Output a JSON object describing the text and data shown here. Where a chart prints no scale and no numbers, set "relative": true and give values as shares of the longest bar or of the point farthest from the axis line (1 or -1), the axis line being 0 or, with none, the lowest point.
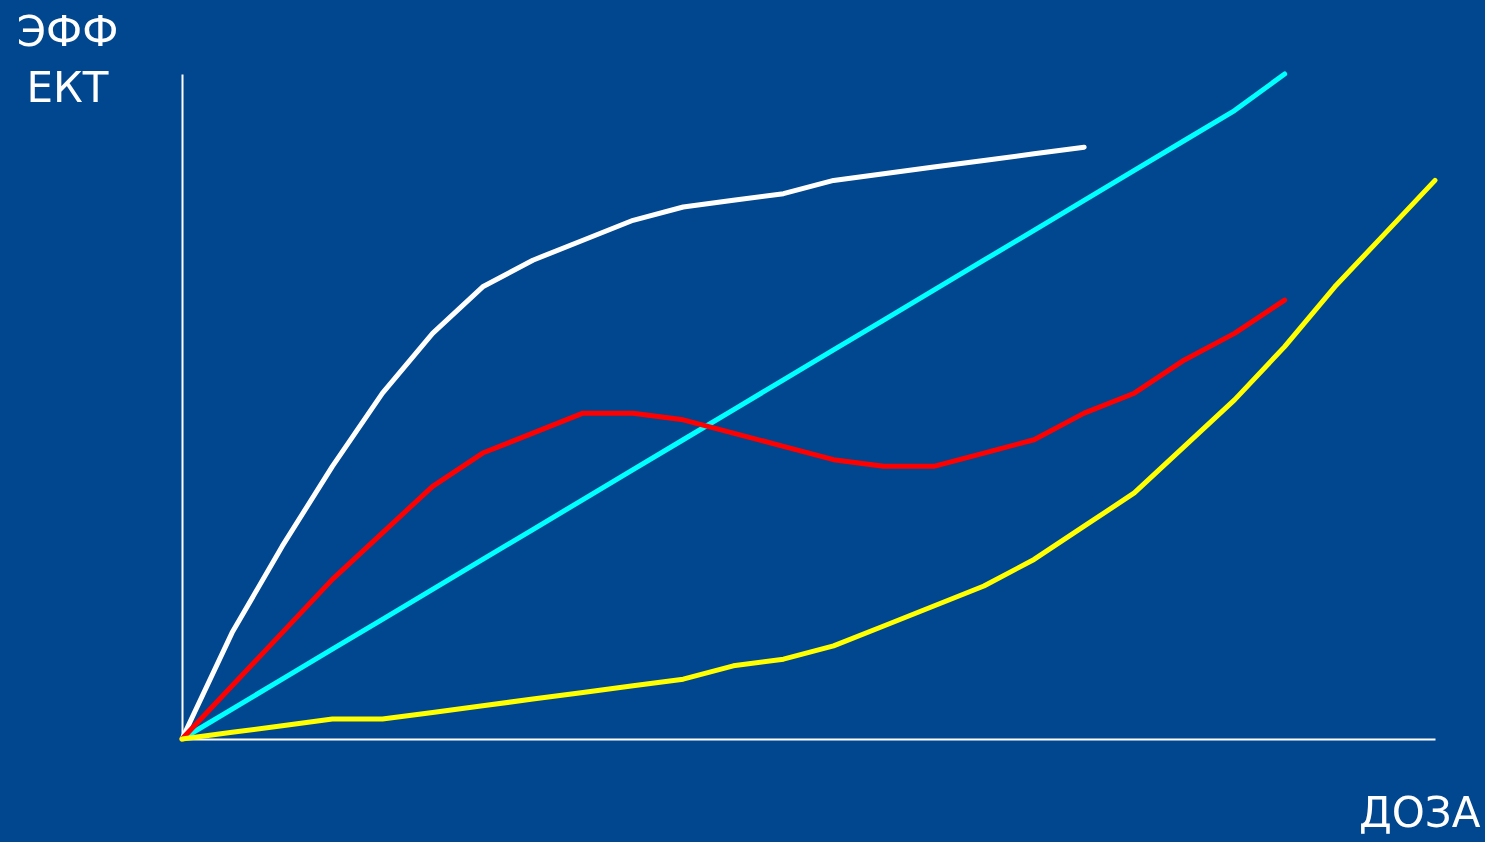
{
  "chart_data": {
    "type": "line",
    "relative": true,
    "xlabel": "ДОЗА",
    "ylabel": "ЭФФ\nЕКТ",
    "tick_labels": false,
    "marker": "none",
    "line_style": "solid",
    "legend": false,
    "categories": [
      null,
      null,
      null,
      null,
      null,
      null,
      null,
      null,
      null,
      null,
      null,
      null,
      null,
      null,
      null,
      null,
      null,
      null,
      null,
      null,
      null,
      null,
      null,
      null,
      null,
      null
    ],
    "series": [
      {
        "color": "#ffffff",
        "values": [
          0,
          0.16,
          0.29,
          0.41,
          0.52,
          0.61,
          0.68,
          0.72,
          0.75,
          0.78,
          0.8,
          0.81,
          0.82,
          0.84,
          0.85,
          0.86,
          0.87,
          0.88,
          0.89,
          null,
          null,
          null,
          null,
          null,
          null,
          null
        ]
      },
      {
        "color": "#00ffff",
        "values": [
          0,
          0.045,
          0.09,
          0.135,
          0.18,
          0.225,
          0.27,
          0.315,
          0.36,
          0.405,
          0.45,
          0.495,
          0.54,
          0.585,
          0.63,
          0.675,
          0.72,
          0.765,
          0.81,
          0.855,
          0.9,
          0.945,
          1.0,
          null,
          null,
          null
        ]
      },
      {
        "color": "#ff0000",
        "values": [
          0,
          0.08,
          0.16,
          0.24,
          0.31,
          0.38,
          0.43,
          0.46,
          0.49,
          0.49,
          0.48,
          0.46,
          0.44,
          0.42,
          0.41,
          0.41,
          0.43,
          0.45,
          0.49,
          0.52,
          0.57,
          0.61,
          0.66,
          null,
          null,
          null
        ]
      },
      {
        "color": "#ffff00",
        "values": [
          0,
          0.01,
          0.02,
          0.03,
          0.03,
          0.04,
          0.05,
          0.06,
          0.07,
          0.08,
          0.09,
          0.11,
          0.12,
          0.14,
          0.17,
          0.2,
          0.23,
          0.27,
          0.32,
          0.37,
          0.44,
          0.51,
          0.59,
          0.68,
          0.76,
          0.84
        ]
      }
    ]
  }
}
